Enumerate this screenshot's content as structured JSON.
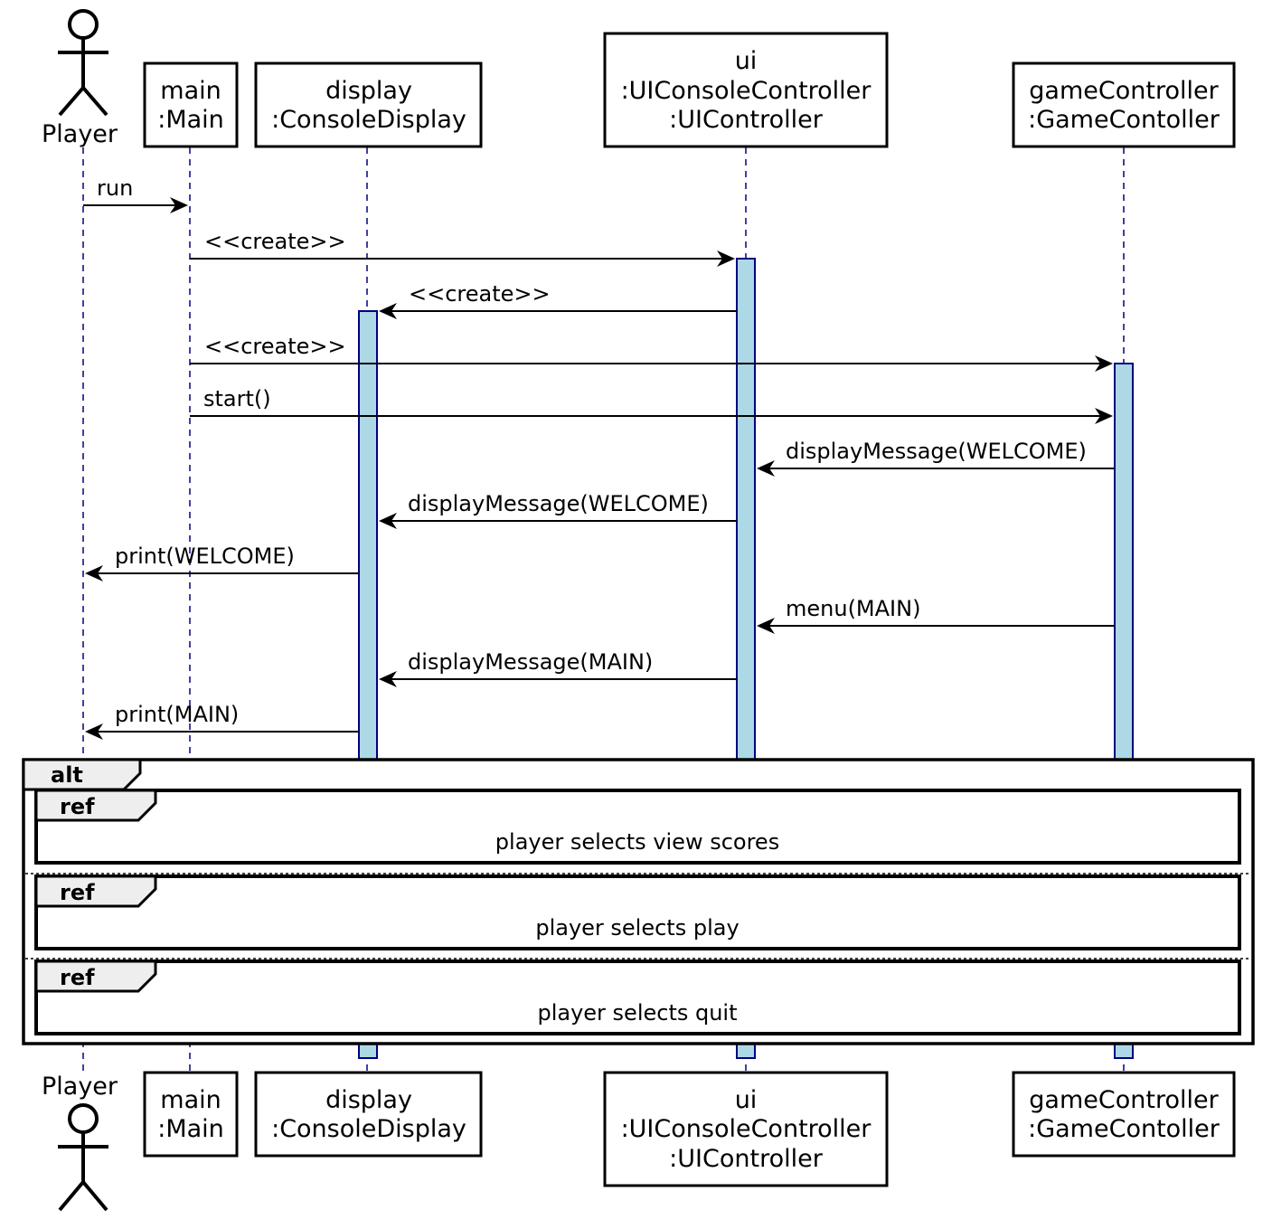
{
  "participants": [
    {
      "id": "player",
      "kind": "actor",
      "lines": [
        "Player"
      ]
    },
    {
      "id": "main",
      "kind": "box",
      "lines": [
        "main",
        ":Main"
      ]
    },
    {
      "id": "display",
      "kind": "box",
      "lines": [
        "display",
        ":ConsoleDisplay"
      ]
    },
    {
      "id": "ui",
      "kind": "box",
      "lines": [
        "ui",
        ":UIConsoleController",
        ":UIController"
      ]
    },
    {
      "id": "game",
      "kind": "box",
      "lines": [
        "gameController",
        ":GameContoller"
      ]
    }
  ],
  "messages": [
    {
      "from": "player",
      "to": "main",
      "label": "run"
    },
    {
      "from": "main",
      "to": "ui",
      "label": "<<create>>"
    },
    {
      "from": "ui",
      "to": "display",
      "label": "<<create>>"
    },
    {
      "from": "main",
      "to": "game",
      "label": "<<create>>"
    },
    {
      "from": "main",
      "to": "game",
      "label": "start()"
    },
    {
      "from": "game",
      "to": "ui",
      "label": "displayMessage(WELCOME)"
    },
    {
      "from": "ui",
      "to": "display",
      "label": "displayMessage(WELCOME)"
    },
    {
      "from": "display",
      "to": "player",
      "label": "print(WELCOME)"
    },
    {
      "from": "game",
      "to": "ui",
      "label": "menu(MAIN)"
    },
    {
      "from": "ui",
      "to": "display",
      "label": "displayMessage(MAIN)"
    },
    {
      "from": "display",
      "to": "player",
      "label": "print(MAIN)"
    }
  ],
  "fragment": {
    "operator": "alt",
    "operands": [
      {
        "ref_tag": "ref",
        "label": "player selects view scores"
      },
      {
        "ref_tag": "ref",
        "label": "player selects play"
      },
      {
        "ref_tag": "ref",
        "label": "player selects quit"
      }
    ]
  },
  "colors": {
    "activation_fill": "#add8e6",
    "activation_stroke": "#000080",
    "lifeline": "#000080",
    "tab_fill": "#eeeeee"
  }
}
